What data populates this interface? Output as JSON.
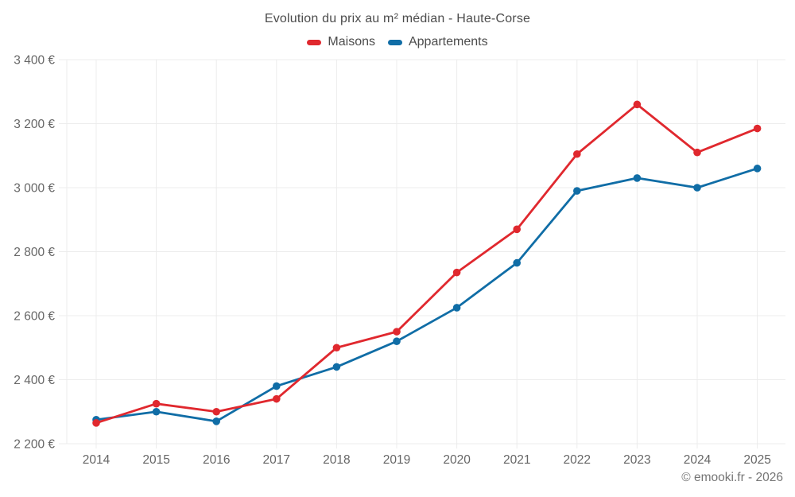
{
  "title": "Evolution du prix au m² médian - Haute-Corse",
  "legend": [
    {
      "label": "Maisons",
      "color": "#e0282e"
    },
    {
      "label": "Appartements",
      "color": "#106da6"
    }
  ],
  "footer": {
    "copyright": "© emooki.fr - 2026"
  },
  "chart_data": {
    "type": "line",
    "title": "Evolution du prix au m² médian - Haute-Corse",
    "x": [
      2014,
      2015,
      2016,
      2017,
      2018,
      2019,
      2020,
      2021,
      2022,
      2023,
      2024,
      2025
    ],
    "series": [
      {
        "name": "Maisons",
        "color": "#e0282e",
        "values": [
          2265,
          2325,
          2300,
          2340,
          2500,
          2550,
          2735,
          2870,
          3105,
          3260,
          3110,
          3185
        ]
      },
      {
        "name": "Appartements",
        "color": "#106da6",
        "values": [
          2275,
          2300,
          2270,
          2380,
          2440,
          2520,
          2625,
          2765,
          2990,
          3030,
          3000,
          3060
        ]
      }
    ],
    "ylim": [
      2200,
      3400
    ],
    "ytick_step": 200,
    "ytick_labels": [
      "2 200 €",
      "2 400 €",
      "2 600 €",
      "2 800 €",
      "3 000 €",
      "3 200 €",
      "3 400 €"
    ],
    "grid": true,
    "legend_position": "top",
    "grid_color": "#ececec",
    "tick_text_color": "#666666"
  }
}
